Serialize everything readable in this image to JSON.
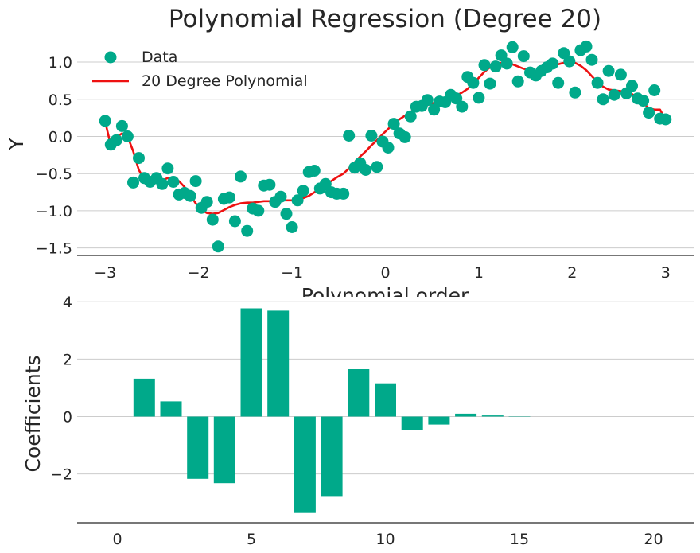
{
  "chart_data": [
    {
      "type": "scatter",
      "title": "Polynomial Regression (Degree 20)",
      "xlabel": "Polynomial order",
      "ylabel": "Y",
      "xlim": [
        -3.3,
        3.3
      ],
      "ylim": [
        -1.6,
        1.3
      ],
      "xticks": [
        -3,
        -2,
        -1,
        0,
        1,
        2,
        3
      ],
      "xtick_labels": [
        "−3",
        "−2",
        "−1",
        "0",
        "1",
        "2",
        "3"
      ],
      "yticks": [
        -1.5,
        -1.0,
        -0.5,
        0.0,
        0.5,
        1.0
      ],
      "ytick_labels": [
        "−1.5",
        "−1.0",
        "−0.5",
        "0.0",
        "0.5",
        "1.0"
      ],
      "grid": "horizontal",
      "legend_position": "top-left",
      "colors": {
        "points": "#00a98a",
        "fit": "#ee1111",
        "grid": "#cccccc",
        "text": "#262626"
      },
      "series": [
        {
          "name": "Data",
          "kind": "points",
          "x": [
            -3.0,
            -2.94,
            -2.88,
            -2.82,
            -2.76,
            -2.7,
            -2.64,
            -2.58,
            -2.52,
            -2.45,
            -2.39,
            -2.33,
            -2.27,
            -2.21,
            -2.15,
            -2.09,
            -2.03,
            -1.97,
            -1.91,
            -1.85,
            -1.79,
            -1.73,
            -1.67,
            -1.61,
            -1.55,
            -1.48,
            -1.42,
            -1.36,
            -1.3,
            -1.24,
            -1.18,
            -1.12,
            -1.06,
            -1.0,
            -0.94,
            -0.88,
            -0.82,
            -0.76,
            -0.7,
            -0.64,
            -0.58,
            -0.52,
            -0.45,
            -0.39,
            -0.33,
            -0.27,
            -0.21,
            -0.15,
            -0.09,
            -0.03,
            0.03,
            0.09,
            0.15,
            0.21,
            0.27,
            0.33,
            0.39,
            0.45,
            0.52,
            0.58,
            0.64,
            0.7,
            0.76,
            0.82,
            0.88,
            0.94,
            1.0,
            1.06,
            1.12,
            1.18,
            1.24,
            1.3,
            1.36,
            1.42,
            1.48,
            1.55,
            1.61,
            1.67,
            1.73,
            1.79,
            1.85,
            1.91,
            1.97,
            2.03,
            2.09,
            2.15,
            2.21,
            2.27,
            2.33,
            2.39,
            2.45,
            2.52,
            2.58,
            2.64,
            2.7,
            2.76,
            2.82,
            2.88,
            2.94,
            3.0
          ],
          "y": [
            0.21,
            -0.11,
            -0.05,
            0.14,
            0.0,
            -0.62,
            -0.29,
            -0.56,
            -0.61,
            -0.56,
            -0.64,
            -0.43,
            -0.61,
            -0.78,
            -0.76,
            -0.8,
            -0.6,
            -0.96,
            -0.88,
            -1.12,
            -1.48,
            -0.84,
            -0.82,
            -1.14,
            -0.54,
            -1.27,
            -0.97,
            -1.0,
            -0.66,
            -0.65,
            -0.88,
            -0.81,
            -1.04,
            -1.22,
            -0.86,
            -0.73,
            -0.48,
            -0.46,
            -0.7,
            -0.64,
            -0.75,
            -0.77,
            -0.77,
            0.01,
            -0.42,
            -0.36,
            -0.45,
            0.01,
            -0.41,
            -0.07,
            -0.15,
            0.17,
            0.04,
            -0.01,
            0.27,
            0.4,
            0.41,
            0.49,
            0.36,
            0.47,
            0.46,
            0.56,
            0.51,
            0.4,
            0.8,
            0.72,
            0.52,
            0.96,
            0.71,
            0.94,
            1.09,
            0.98,
            1.2,
            0.74,
            1.08,
            0.86,
            0.82,
            0.88,
            0.93,
            0.98,
            0.72,
            1.12,
            1.01,
            0.59,
            1.16,
            1.21,
            1.03,
            0.72,
            0.5,
            0.88,
            0.56,
            0.83,
            0.58,
            0.68,
            0.51,
            0.48,
            0.32,
            0.62,
            0.24,
            0.23
          ]
        },
        {
          "name": "20 Degree Polynomial",
          "kind": "line",
          "x": [
            -3.0,
            -2.94,
            -2.88,
            -2.82,
            -2.76,
            -2.7,
            -2.64,
            -2.58,
            -2.52,
            -2.45,
            -2.39,
            -2.33,
            -2.27,
            -2.21,
            -2.15,
            -2.09,
            -2.03,
            -1.97,
            -1.91,
            -1.85,
            -1.79,
            -1.73,
            -1.67,
            -1.61,
            -1.55,
            -1.48,
            -1.42,
            -1.36,
            -1.3,
            -1.24,
            -1.18,
            -1.12,
            -1.06,
            -1.0,
            -0.94,
            -0.88,
            -0.82,
            -0.76,
            -0.7,
            -0.64,
            -0.58,
            -0.52,
            -0.45,
            -0.39,
            -0.33,
            -0.27,
            -0.21,
            -0.15,
            -0.09,
            -0.03,
            0.03,
            0.09,
            0.15,
            0.21,
            0.27,
            0.33,
            0.39,
            0.45,
            0.52,
            0.58,
            0.64,
            0.7,
            0.76,
            0.82,
            0.88,
            0.94,
            1.0,
            1.06,
            1.12,
            1.18,
            1.24,
            1.3,
            1.36,
            1.42,
            1.48,
            1.55,
            1.61,
            1.67,
            1.73,
            1.79,
            1.85,
            1.91,
            1.97,
            2.03,
            2.09,
            2.15,
            2.21,
            2.27,
            2.33,
            2.39,
            2.45,
            2.52,
            2.58,
            2.64,
            2.7,
            2.76,
            2.82,
            2.88,
            2.94,
            3.0
          ],
          "y": [
            0.2,
            -0.12,
            -0.01,
            0.04,
            0.0,
            -0.2,
            -0.45,
            -0.58,
            -0.62,
            -0.62,
            -0.59,
            -0.56,
            -0.56,
            -0.6,
            -0.68,
            -0.79,
            -0.9,
            -0.99,
            -1.03,
            -1.04,
            -1.03,
            -0.99,
            -0.95,
            -0.92,
            -0.9,
            -0.89,
            -0.89,
            -0.88,
            -0.87,
            -0.87,
            -0.87,
            -0.86,
            -0.86,
            -0.86,
            -0.85,
            -0.83,
            -0.8,
            -0.75,
            -0.7,
            -0.65,
            -0.6,
            -0.55,
            -0.5,
            -0.43,
            -0.35,
            -0.27,
            -0.2,
            -0.12,
            -0.05,
            0.03,
            0.1,
            0.17,
            0.23,
            0.28,
            0.33,
            0.37,
            0.4,
            0.42,
            0.45,
            0.47,
            0.49,
            0.52,
            0.55,
            0.59,
            0.64,
            0.71,
            0.79,
            0.87,
            0.93,
            0.97,
            0.99,
            0.99,
            0.97,
            0.94,
            0.91,
            0.89,
            0.88,
            0.89,
            0.91,
            0.94,
            0.97,
            0.99,
            1.0,
            0.99,
            0.95,
            0.89,
            0.81,
            0.73,
            0.67,
            0.63,
            0.62,
            0.61,
            0.6,
            0.57,
            0.52,
            0.45,
            0.38,
            0.36,
            0.36,
            0.22
          ]
        }
      ]
    },
    {
      "type": "bar",
      "title": "",
      "xlabel": "",
      "ylabel": "Coefficients",
      "xlim": [
        -1.5,
        21.5
      ],
      "ylim": [
        -3.7,
        4.2
      ],
      "xticks": [
        0,
        5,
        10,
        15,
        20
      ],
      "xtick_labels": [
        "0",
        "5",
        "10",
        "15",
        "20"
      ],
      "yticks": [
        -2,
        0,
        2,
        4
      ],
      "ytick_labels": [
        "−2",
        "0",
        "2",
        "4"
      ],
      "grid": "horizontal",
      "colors": {
        "bars": "#00a98a",
        "grid": "#cccccc",
        "text": "#262626"
      },
      "categories": [
        0,
        1,
        2,
        3,
        4,
        5,
        6,
        7,
        8,
        9,
        10,
        11,
        12,
        13,
        14,
        15,
        16,
        17,
        18,
        19,
        20
      ],
      "values": [
        0.0,
        1.32,
        0.53,
        -2.17,
        -2.32,
        3.77,
        3.69,
        -3.36,
        -2.77,
        1.65,
        1.16,
        -0.46,
        -0.28,
        0.1,
        0.04,
        0.01,
        0.0,
        0.0,
        0.0,
        0.0,
        0.0
      ]
    }
  ]
}
